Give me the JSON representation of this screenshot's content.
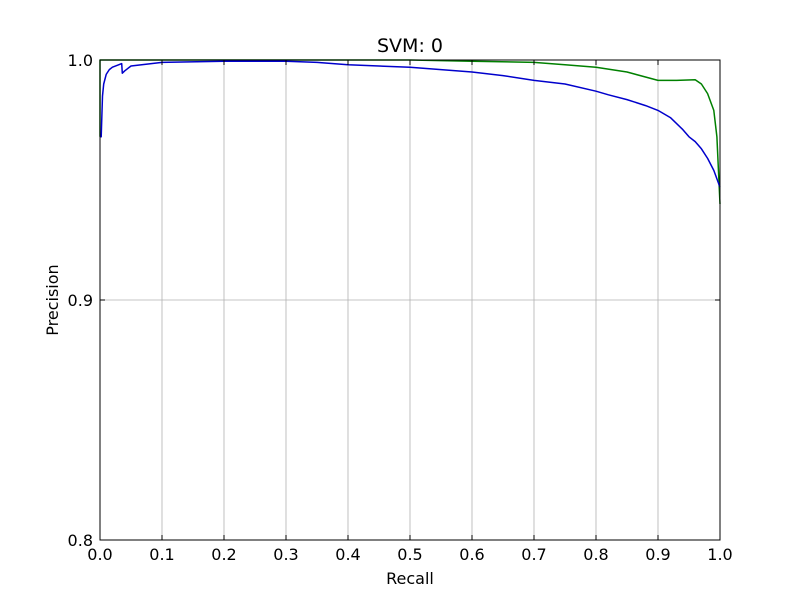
{
  "chart_data": {
    "type": "line",
    "title": "SVM: 0",
    "xlabel": "Recall",
    "ylabel": "Precision",
    "xlim": [
      0.0,
      1.0
    ],
    "ylim": [
      0.8,
      1.0
    ],
    "x_ticks": [
      "0.0",
      "0.1",
      "0.2",
      "0.3",
      "0.4",
      "0.5",
      "0.6",
      "0.7",
      "0.8",
      "0.9",
      "1.0"
    ],
    "y_ticks": [
      "0.8",
      "0.9",
      "1.0"
    ],
    "grid": true,
    "series": [
      {
        "color": "#008000",
        "x": [
          0.0,
          0.0,
          0.01,
          0.03,
          0.05,
          0.1,
          0.2,
          0.3,
          0.4,
          0.5,
          0.6,
          0.7,
          0.75,
          0.8,
          0.85,
          0.9,
          0.93,
          0.96,
          0.97,
          0.98,
          0.99,
          0.995,
          1.0
        ],
        "y": [
          0.968,
          1.0,
          1.0,
          1.0,
          1.0,
          1.0,
          1.0,
          1.0,
          1.0,
          1.0,
          0.9995,
          0.999,
          0.998,
          0.997,
          0.995,
          0.9915,
          0.9915,
          0.9918,
          0.99,
          0.986,
          0.979,
          0.968,
          0.94
        ]
      },
      {
        "color": "#0000cc",
        "x": [
          0.0,
          0.002,
          0.004,
          0.006,
          0.01,
          0.015,
          0.02,
          0.03,
          0.035,
          0.036,
          0.04,
          0.05,
          0.1,
          0.2,
          0.3,
          0.35,
          0.4,
          0.5,
          0.55,
          0.6,
          0.65,
          0.7,
          0.75,
          0.8,
          0.82,
          0.85,
          0.88,
          0.9,
          0.92,
          0.94,
          0.95,
          0.96,
          0.97,
          0.98,
          0.99,
          1.0
        ],
        "y": [
          0.968,
          0.968,
          0.985,
          0.99,
          0.994,
          0.996,
          0.997,
          0.998,
          0.9985,
          0.9945,
          0.9955,
          0.9975,
          0.999,
          0.9995,
          0.9995,
          0.999,
          0.998,
          0.997,
          0.996,
          0.995,
          0.9935,
          0.9915,
          0.99,
          0.987,
          0.9855,
          0.9835,
          0.981,
          0.979,
          0.976,
          0.971,
          0.968,
          0.966,
          0.963,
          0.959,
          0.954,
          0.947
        ]
      }
    ]
  }
}
